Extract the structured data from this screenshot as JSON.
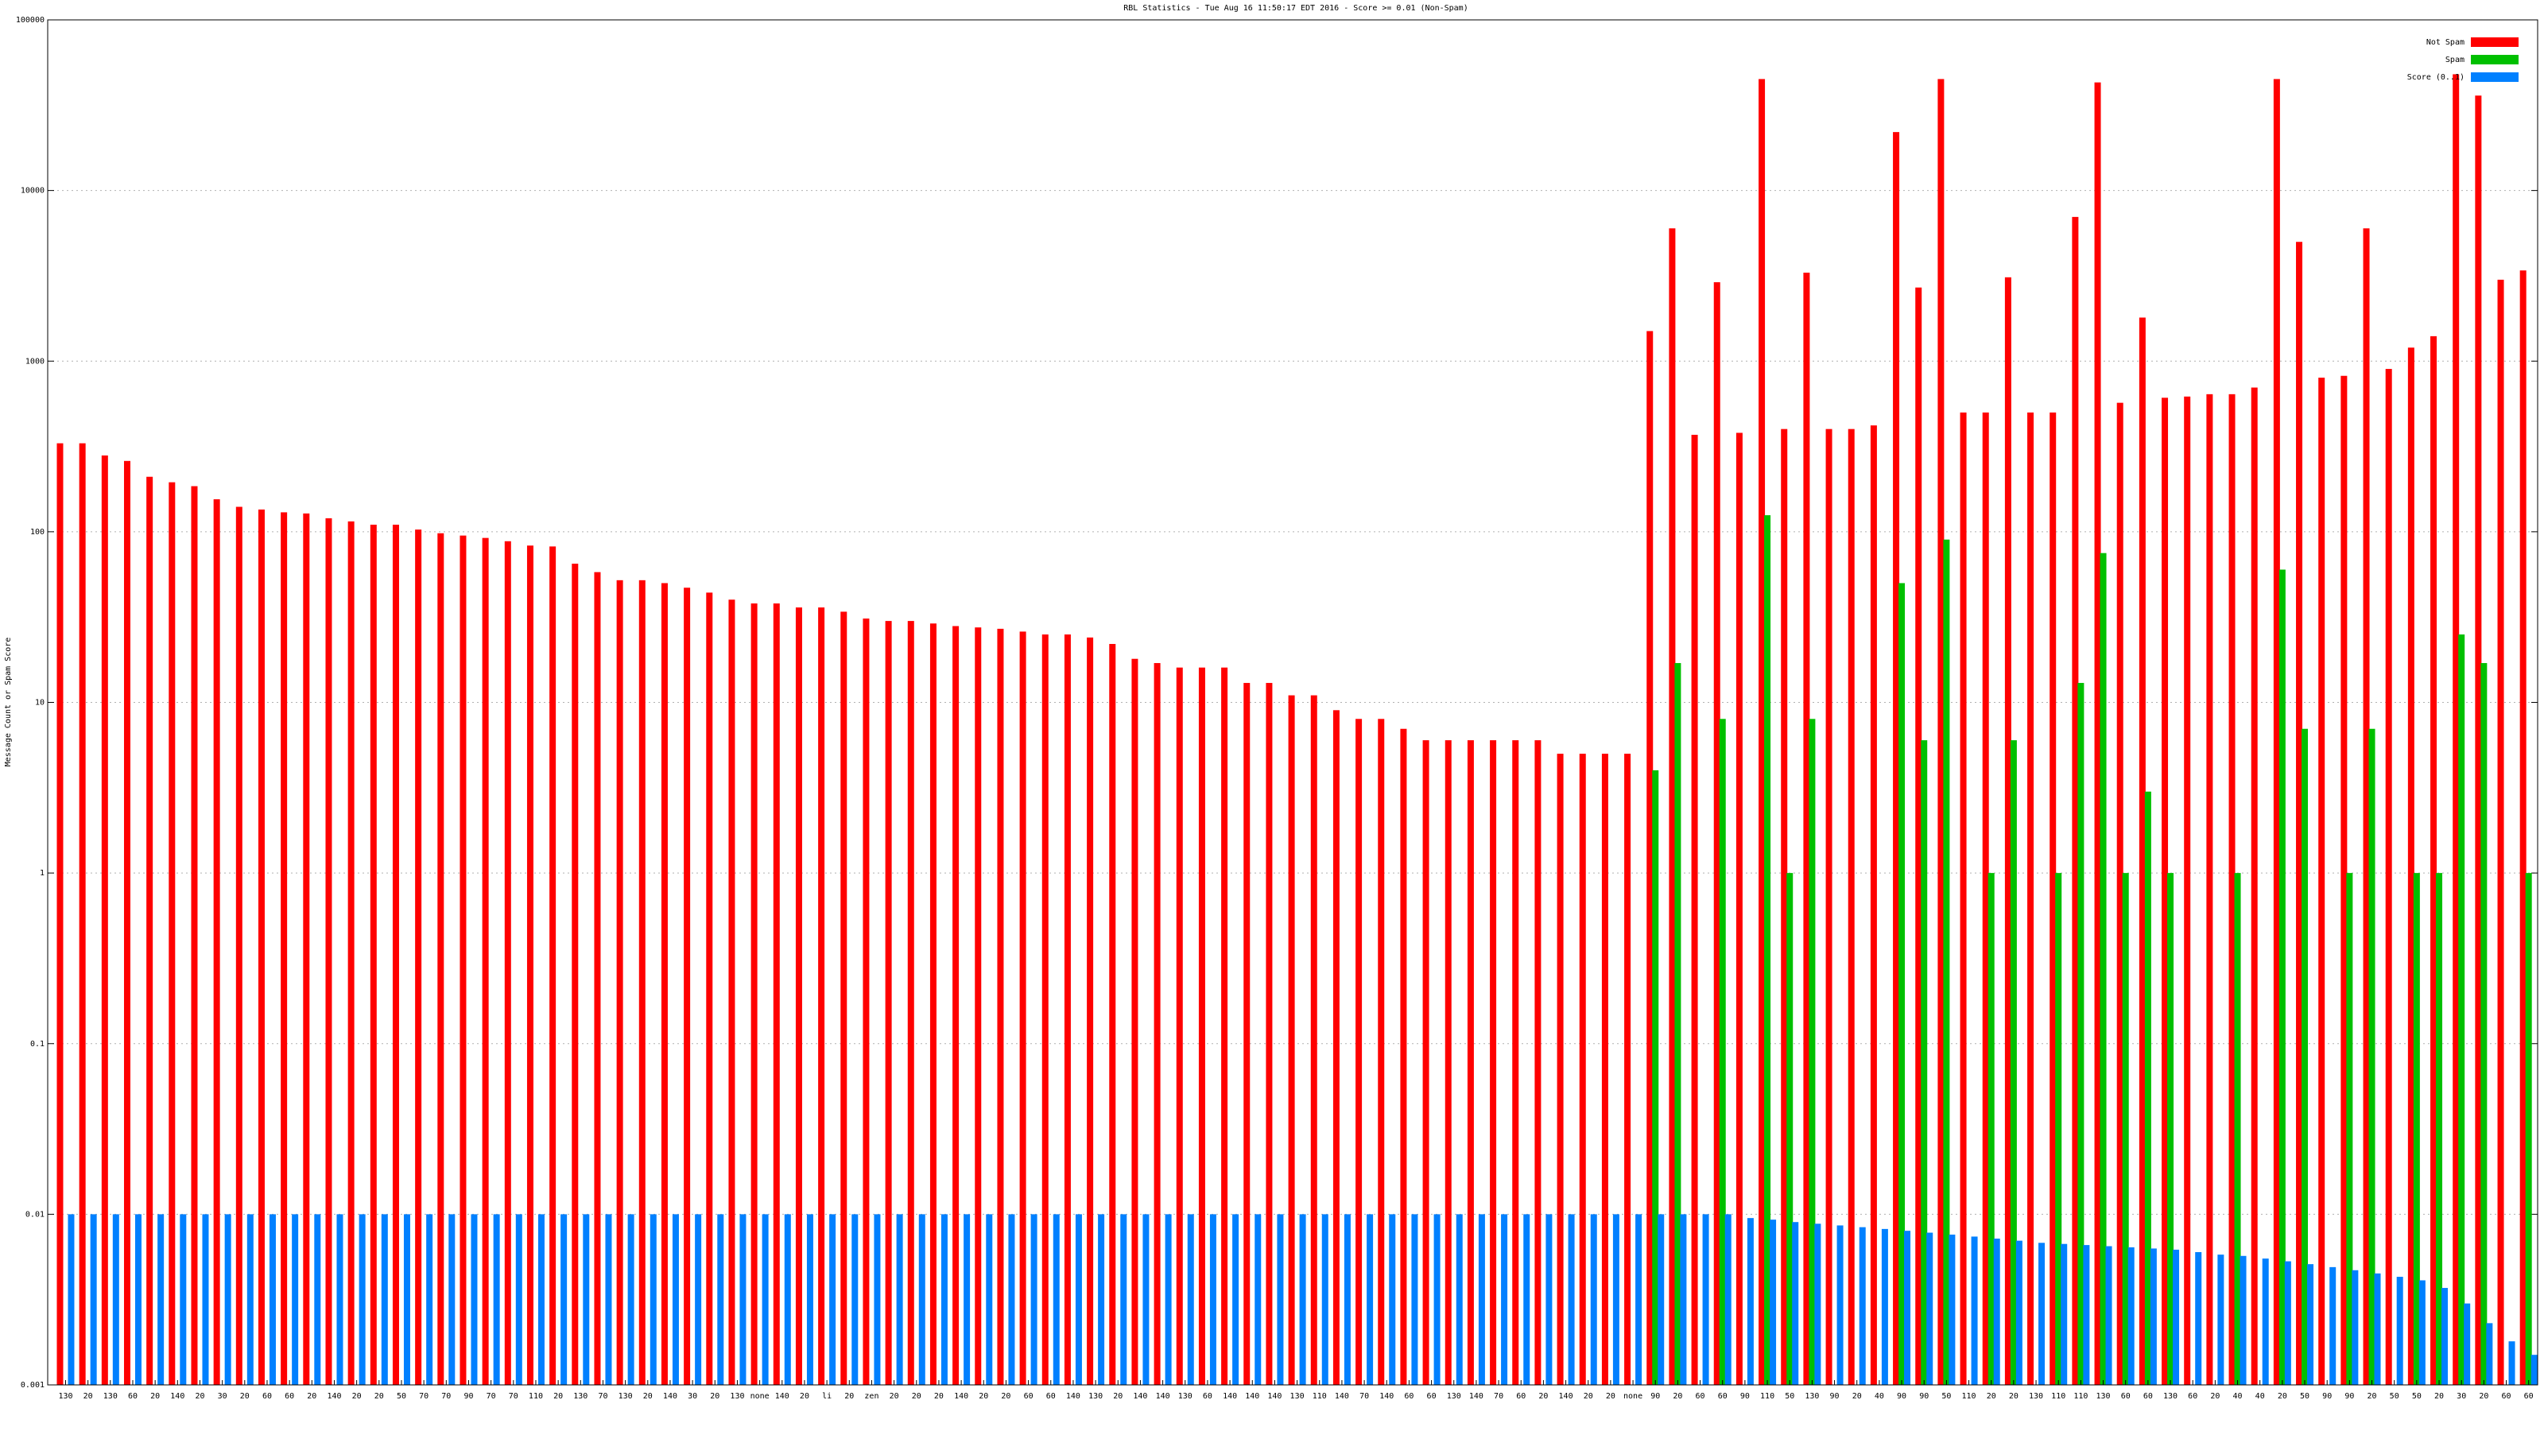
{
  "chart_data": {
    "type": "bar",
    "title": "RBL Statistics - Tue Aug 16 11:50:17 EDT 2016 - Score >= 0.01 (Non-Spam)",
    "y_label": "Message Count or Spam Score",
    "log_y": true,
    "grid": true,
    "legend": "top-right",
    "ylim": [
      0.001,
      100000
    ],
    "yticks": [
      0.001,
      0.01,
      0.1,
      1,
      10,
      100,
      1000,
      10000,
      100000
    ],
    "categories": [
      "130",
      "20",
      "130",
      "60",
      "20",
      "140",
      "20",
      "30",
      "20",
      "60",
      "60",
      "20",
      "140",
      "20",
      "20",
      "50",
      "70",
      "70",
      "90",
      "70",
      "70",
      "110",
      "20",
      "130",
      "70",
      "130",
      "20",
      "140",
      "30",
      "20",
      "130",
      "none",
      "140",
      "20",
      "li",
      "20",
      "zen",
      "20",
      "20",
      "20",
      "140",
      "20",
      "20",
      "60",
      "60",
      "140",
      "130",
      "20",
      "140",
      "140",
      "130",
      "60",
      "140",
      "140",
      "140",
      "130",
      "110",
      "140",
      "70",
      "140",
      "60",
      "60",
      "130",
      "140",
      "70",
      "60",
      "20",
      "140",
      "20",
      "20",
      "none",
      "90",
      "20",
      "60",
      "60",
      "90",
      "110",
      "50",
      "130",
      "90",
      "20",
      "40",
      "90",
      "90",
      "50",
      "110",
      "20",
      "20",
      "130",
      "110",
      "110",
      "130",
      "60",
      "60",
      "130",
      "60",
      "20",
      "40",
      "40",
      "20",
      "50",
      "90",
      "90",
      "20",
      "50",
      "50",
      "20",
      "30",
      "20",
      "60",
      "60"
    ],
    "series": [
      {
        "name": "Not Spam",
        "color": "#ff0000",
        "values": [
          330,
          330,
          280,
          260,
          210,
          195,
          185,
          155,
          140,
          135,
          130,
          128,
          120,
          115,
          110,
          110,
          103,
          98,
          95,
          92,
          88,
          83,
          82,
          65,
          58,
          52,
          52,
          50,
          47,
          44,
          40,
          38,
          38,
          36,
          36,
          34,
          31,
          30,
          30,
          29,
          28,
          27.5,
          27,
          26,
          25,
          25,
          24,
          22,
          18,
          17,
          16,
          16,
          16,
          13,
          13,
          11,
          11,
          9,
          8,
          8,
          7,
          6,
          6,
          6,
          6,
          6,
          6,
          5,
          5,
          5,
          5,
          1500,
          6000,
          370,
          2900,
          380,
          45000,
          400,
          3300,
          400,
          400,
          420,
          22000,
          2700,
          45000,
          500,
          500,
          3100,
          500,
          500,
          7000,
          43000,
          570,
          1800,
          610,
          620,
          640,
          640,
          700,
          45000,
          5000,
          800,
          820,
          6000,
          900,
          1200,
          1400,
          48000,
          36000,
          3000,
          3400
        ]
      },
      {
        "name": "Spam",
        "color": "#00c000",
        "values": [
          null,
          null,
          null,
          null,
          null,
          null,
          null,
          null,
          null,
          null,
          null,
          null,
          null,
          null,
          null,
          null,
          null,
          null,
          null,
          null,
          null,
          null,
          null,
          null,
          null,
          null,
          null,
          null,
          null,
          null,
          null,
          null,
          null,
          null,
          null,
          null,
          null,
          null,
          null,
          null,
          null,
          null,
          null,
          null,
          null,
          null,
          null,
          null,
          null,
          null,
          null,
          null,
          null,
          null,
          null,
          null,
          null,
          null,
          null,
          null,
          null,
          null,
          null,
          null,
          null,
          null,
          null,
          null,
          null,
          null,
          null,
          4,
          17,
          null,
          8,
          null,
          125,
          1,
          8,
          null,
          null,
          null,
          50,
          6,
          90,
          null,
          1,
          6,
          null,
          1,
          13,
          75,
          1,
          3,
          1,
          null,
          null,
          1,
          null,
          60,
          7,
          null,
          1,
          7,
          null,
          1,
          1,
          25,
          17,
          null,
          1
        ]
      },
      {
        "name": "Score (0..1)",
        "color": "#0080ff",
        "values": [
          0.01,
          0.01,
          0.01,
          0.01,
          0.01,
          0.01,
          0.01,
          0.01,
          0.01,
          0.01,
          0.01,
          0.01,
          0.01,
          0.01,
          0.01,
          0.01,
          0.01,
          0.01,
          0.01,
          0.01,
          0.01,
          0.01,
          0.01,
          0.01,
          0.01,
          0.01,
          0.01,
          0.01,
          0.01,
          0.01,
          0.01,
          0.01,
          0.01,
          0.01,
          0.01,
          0.01,
          0.01,
          0.01,
          0.01,
          0.01,
          0.01,
          0.01,
          0.01,
          0.01,
          0.01,
          0.01,
          0.01,
          0.01,
          0.01,
          0.01,
          0.01,
          0.01,
          0.01,
          0.01,
          0.01,
          0.01,
          0.01,
          0.01,
          0.01,
          0.01,
          0.01,
          0.01,
          0.01,
          0.01,
          0.01,
          0.01,
          0.01,
          0.01,
          0.01,
          0.01,
          0.01,
          0.01,
          0.01,
          0.01,
          0.01,
          0.0095,
          0.0093,
          0.009,
          0.0088,
          0.0086,
          0.0084,
          0.0082,
          0.008,
          0.0078,
          0.0076,
          0.0074,
          0.0072,
          0.007,
          0.0068,
          0.0067,
          0.0066,
          0.0065,
          0.0064,
          0.0063,
          0.0062,
          0.006,
          0.0058,
          0.0057,
          0.0055,
          0.0053,
          0.0051,
          0.0049,
          0.0047,
          0.0045,
          0.0043,
          0.0041,
          0.0037,
          0.003,
          0.0023,
          0.0018,
          0.0015
        ]
      }
    ]
  }
}
